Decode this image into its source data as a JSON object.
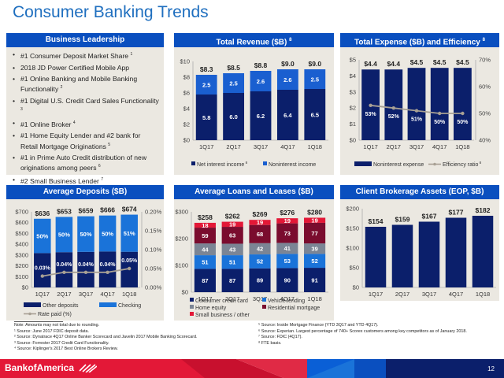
{
  "page": {
    "title": "Consumer Banking Trends",
    "page_number": "12",
    "logo_text": "BankofAmerica"
  },
  "business_leadership": {
    "header": "Business Leadership",
    "items": [
      {
        "text": "#1 Consumer Deposit Market Share",
        "sup": "1"
      },
      {
        "text": "2018 JD Power Certified Mobile App",
        "sup": ""
      },
      {
        "text": "#1 Online Banking and Mobile Banking Functionality",
        "sup": "2"
      },
      {
        "text": "#1 Digital U.S. Credit Card Sales Functionality",
        "sup": "3"
      },
      {
        "text": "#1 Online Broker",
        "sup": "4"
      },
      {
        "text": "#1 Home Equity Lender and #2 bank for Retail Mortgage Originations",
        "sup": "5"
      },
      {
        "text": "#1 in Prime Auto Credit distribution of new originations among peers",
        "sup": "6"
      },
      {
        "text": "#2 Small Business Lender",
        "sup": "7"
      }
    ]
  },
  "footnotes": {
    "left": [
      "Note: Amounts may not total due to rounding.",
      "¹ Source: June 2017 FDIC deposit data.",
      "² Source: Dynatrace 4Q17 Online Banker Scorecard and Javelin 2017 Mobile Banking Scorecard.",
      "³ Source: Forrester 2017 Credit Card Functionality.",
      "⁴ Source: Kiplinger's 2017 Best Online Brokers Review."
    ],
    "right": [
      "⁵ Source: Inside Mortgage Finance (YTD 3Q17 and YTD 4Q17).",
      "⁶ Source: Experian. Largest percentage of 740+ Scorex customers among key competitors as of January 2018.",
      "⁷ Source: FDIC (4Q17).",
      "⁸ FTE basis."
    ]
  },
  "colors": {
    "header_blue": "#0a4fbf",
    "navy": "#0b1f6b",
    "light_blue": "#1a73d9",
    "gray": "#7b8595",
    "maroon": "#7a0c2e",
    "red": "#e31837",
    "line_tan": "#a8a094"
  },
  "chart_data": [
    {
      "id": "total_revenue",
      "type": "bar",
      "stacked": true,
      "title": "Total Revenue ($B)",
      "title_sup": "8",
      "categories": [
        "1Q17",
        "2Q17",
        "3Q17",
        "4Q17",
        "1Q18"
      ],
      "series": [
        {
          "name": "Net interest income",
          "sup": "8",
          "values": [
            5.8,
            6.0,
            6.2,
            6.4,
            6.5
          ],
          "color": "#0b1f6b"
        },
        {
          "name": "Noninterest income",
          "sup": "",
          "values": [
            2.5,
            2.5,
            2.6,
            2.6,
            2.5
          ],
          "color": "#1a5fd0"
        }
      ],
      "totals": [
        "$8.3",
        "$8.5",
        "$8.8",
        "$9.0",
        "$9.0"
      ],
      "ylim": [
        0,
        10
      ],
      "yticks": [
        "$0",
        "$2",
        "$4",
        "$6",
        "$8",
        "$10"
      ],
      "legend": "bottom"
    },
    {
      "id": "total_expense",
      "type": "bar",
      "title": "Total Expense ($B) and Efficiency",
      "title_sup": "8",
      "categories": [
        "1Q17",
        "2Q17",
        "3Q17",
        "4Q17",
        "1Q18"
      ],
      "series": [
        {
          "name": "Noninterest expense",
          "sup": "",
          "values": [
            4.4,
            4.4,
            4.5,
            4.5,
            4.5
          ],
          "color": "#0b1f6b"
        }
      ],
      "totals": [
        "$4.4",
        "$4.4",
        "$4.5",
        "$4.5",
        "$4.5"
      ],
      "line_series": {
        "name": "Efficiency ratio",
        "sup": "8",
        "values": [
          53,
          52,
          51,
          50,
          50
        ],
        "labels": [
          "53%",
          "52%",
          "51%",
          "50%",
          "50%"
        ],
        "color": "#a8a094"
      },
      "ylim": [
        0,
        5
      ],
      "yticks": [
        "$0",
        "$1",
        "$2",
        "$3",
        "$4",
        "$5"
      ],
      "y2lim": [
        40,
        70
      ],
      "y2ticks": [
        "40%",
        "50%",
        "60%",
        "70%"
      ],
      "legend": "bottom"
    },
    {
      "id": "average_deposits",
      "type": "bar",
      "stacked": true,
      "title": "Average Deposits ($B)",
      "categories": [
        "1Q17",
        "2Q17",
        "3Q17",
        "4Q17",
        "1Q18"
      ],
      "totals_values": [
        636,
        653,
        659,
        666,
        674
      ],
      "totals": [
        "$636",
        "$653",
        "$659",
        "$666",
        "$674"
      ],
      "checking_share": [
        50,
        50,
        50,
        50,
        51
      ],
      "checking_labels": [
        "50%",
        "50%",
        "50%",
        "50%",
        "51%"
      ],
      "series": [
        {
          "name": "Other deposits",
          "values": [
            318,
            326.5,
            329.5,
            333,
            330.3
          ],
          "color": "#0b1f6b"
        },
        {
          "name": "Checking",
          "values": [
            318,
            326.5,
            329.5,
            333,
            343.7
          ],
          "color": "#1a73d9"
        }
      ],
      "line_series": {
        "name": "Rate paid (%)",
        "values": [
          0.03,
          0.04,
          0.04,
          0.04,
          0.05
        ],
        "labels": [
          "0.03%",
          "0.04%",
          "0.04%",
          "0.04%",
          "0.05%"
        ],
        "color": "#a8a094"
      },
      "ylim": [
        0,
        700
      ],
      "yticks": [
        "$0",
        "$100",
        "$200",
        "$300",
        "$400",
        "$500",
        "$600",
        "$700"
      ],
      "y2lim": [
        0,
        0.2
      ],
      "y2ticks": [
        "0.00%",
        "0.05%",
        "0.10%",
        "0.15%",
        "0.20%"
      ],
      "legend": "bottom"
    },
    {
      "id": "average_loans",
      "type": "bar",
      "stacked": true,
      "title": "Average Loans and Leases ($B)",
      "categories": [
        "1Q17",
        "2Q17",
        "3Q17",
        "4Q17",
        "1Q18"
      ],
      "series": [
        {
          "name": "Consumer credit card",
          "values": [
            87,
            87,
            89,
            90,
            91
          ],
          "color": "#0b1f6b"
        },
        {
          "name": "Vehicle lending",
          "values": [
            51,
            51,
            52,
            53,
            52
          ],
          "color": "#1a73d9"
        },
        {
          "name": "Home equity",
          "values": [
            44,
            43,
            42,
            41,
            39
          ],
          "color": "#7b8595"
        },
        {
          "name": "Residential mortgage",
          "values": [
            59,
            63,
            68,
            73,
            77
          ],
          "color": "#7a0c2e"
        },
        {
          "name": "Small business / other",
          "values": [
            18,
            19,
            19,
            19,
            19
          ],
          "color": "#e31837"
        }
      ],
      "totals": [
        "$258",
        "$262",
        "$269",
        "$276",
        "$280"
      ],
      "ylim": [
        0,
        300
      ],
      "yticks": [
        "$0",
        "$100",
        "$200",
        "$300"
      ],
      "legend": "bottom"
    },
    {
      "id": "client_brokerage",
      "type": "bar",
      "title": "Client Brokerage Assets (EOP, $B)",
      "categories": [
        "1Q17",
        "2Q17",
        "3Q17",
        "4Q17",
        "1Q18"
      ],
      "series": [
        {
          "name": "Client brokerage assets",
          "values": [
            154,
            159,
            167,
            177,
            182
          ],
          "color": "#0b1f6b"
        }
      ],
      "totals": [
        "$154",
        "$159",
        "$167",
        "$177",
        "$182"
      ],
      "ylim": [
        0,
        200
      ],
      "yticks": [
        "$0",
        "$50",
        "$100",
        "$150",
        "$200"
      ],
      "legend": "none"
    }
  ]
}
